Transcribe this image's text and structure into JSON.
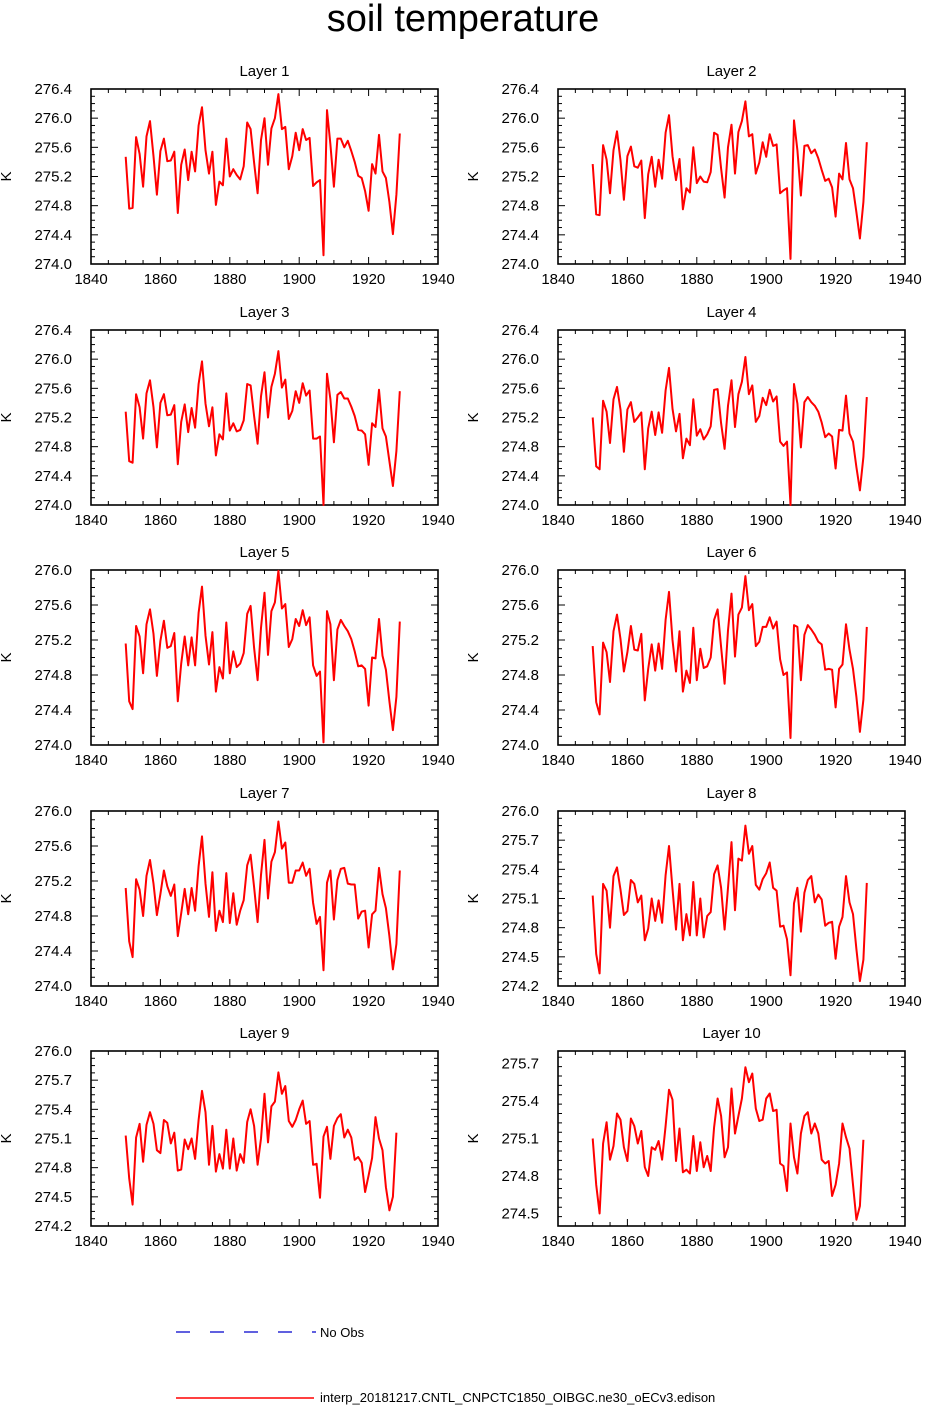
{
  "title": "soil temperature",
  "ylabel": "K",
  "x_ticks": [
    1840,
    1860,
    1880,
    1900,
    1920,
    1940
  ],
  "line_color": "#ff0000",
  "obs_color": "#0000cc",
  "legend": {
    "obs_label": "No Obs",
    "model_label": "interp_20181217.CNTL_CNPCTC1850_OIBGC.ne30_oECv3.edison"
  },
  "chart_data": [
    {
      "type": "line",
      "title": "Layer 1",
      "ylim": [
        274.0,
        276.4
      ],
      "yticks": [
        274.0,
        274.4,
        274.8,
        275.2,
        275.6,
        276.0,
        276.4
      ],
      "x_start": 1850,
      "x_step": 1,
      "values": [
        275.47,
        274.76,
        274.77,
        275.74,
        275.51,
        275.06,
        275.75,
        275.96,
        275.48,
        274.95,
        275.55,
        275.72,
        275.41,
        275.42,
        275.54,
        274.7,
        275.36,
        275.57,
        275.15,
        275.54,
        275.27,
        275.9,
        276.15,
        275.56,
        275.24,
        275.54,
        274.81,
        275.13,
        275.08,
        275.72,
        275.2,
        275.3,
        275.22,
        275.16,
        275.34,
        275.94,
        275.85,
        275.39,
        274.97,
        275.7,
        276.0,
        275.36,
        275.86,
        276.0,
        276.33,
        275.85,
        275.88,
        275.3,
        275.48,
        275.8,
        275.56,
        275.85,
        275.7,
        275.73,
        275.07,
        275.12,
        275.15,
        274.12,
        276.11,
        275.64,
        275.06,
        275.72,
        275.72,
        275.6,
        275.69,
        275.55,
        275.4,
        275.21,
        275.18,
        275.0,
        274.73,
        275.37,
        275.24,
        275.77,
        275.27,
        275.18,
        274.85,
        274.41,
        274.95,
        275.79
      ]
    },
    {
      "type": "line",
      "title": "Layer 2",
      "ylim": [
        274.0,
        276.4
      ],
      "yticks": [
        274.0,
        274.4,
        274.8,
        275.2,
        275.6,
        276.0,
        276.4
      ],
      "x_start": 1850,
      "x_step": 1,
      "values": [
        275.37,
        274.68,
        274.67,
        275.63,
        275.43,
        274.97,
        275.56,
        275.82,
        275.42,
        274.88,
        275.48,
        275.61,
        275.34,
        275.32,
        275.42,
        274.63,
        275.23,
        275.47,
        275.06,
        275.43,
        275.17,
        275.8,
        276.04,
        275.48,
        275.15,
        275.44,
        274.75,
        275.04,
        274.98,
        275.6,
        275.11,
        275.2,
        275.13,
        275.12,
        275.26,
        275.8,
        275.77,
        275.31,
        274.91,
        275.6,
        275.91,
        275.24,
        275.81,
        275.96,
        276.23,
        275.75,
        275.78,
        275.24,
        275.39,
        275.67,
        275.47,
        275.78,
        275.62,
        275.64,
        274.97,
        275.01,
        275.04,
        274.07,
        275.97,
        275.56,
        274.94,
        275.62,
        275.63,
        275.52,
        275.57,
        275.45,
        275.29,
        275.14,
        275.17,
        275.05,
        274.65,
        275.24,
        275.16,
        275.66,
        275.16,
        275.04,
        274.71,
        274.35,
        274.85,
        275.67
      ]
    },
    {
      "type": "line",
      "title": "Layer 3",
      "ylim": [
        274.0,
        276.4
      ],
      "yticks": [
        274.0,
        274.4,
        274.8,
        275.2,
        275.6,
        276.0,
        276.4
      ],
      "x_start": 1850,
      "x_step": 1,
      "values": [
        275.28,
        274.6,
        274.58,
        275.52,
        275.34,
        274.91,
        275.53,
        275.71,
        275.34,
        274.79,
        275.4,
        275.52,
        275.23,
        275.24,
        275.37,
        274.56,
        275.14,
        275.38,
        275.0,
        275.33,
        275.06,
        275.66,
        275.97,
        275.39,
        275.08,
        275.34,
        274.68,
        274.97,
        274.9,
        275.53,
        275.02,
        275.12,
        275.01,
        275.03,
        275.16,
        275.66,
        275.64,
        275.22,
        274.84,
        275.49,
        275.82,
        275.2,
        275.62,
        275.8,
        276.11,
        275.61,
        275.72,
        275.18,
        275.29,
        275.56,
        275.4,
        275.67,
        275.5,
        275.57,
        274.91,
        274.91,
        274.94,
        274.0,
        275.8,
        275.45,
        274.86,
        275.51,
        275.55,
        275.46,
        275.46,
        275.35,
        275.22,
        275.03,
        275.02,
        274.97,
        274.55,
        275.12,
        275.07,
        275.58,
        275.05,
        274.94,
        274.6,
        274.26,
        274.74,
        275.56
      ]
    },
    {
      "type": "line",
      "title": "Layer 4",
      "ylim": [
        274.0,
        276.4
      ],
      "yticks": [
        274.0,
        274.4,
        274.8,
        275.2,
        275.6,
        276.0,
        276.4
      ],
      "x_start": 1850,
      "x_step": 1,
      "values": [
        275.2,
        274.53,
        274.49,
        275.43,
        275.28,
        274.85,
        275.45,
        275.62,
        275.31,
        274.73,
        275.31,
        275.41,
        275.14,
        275.2,
        275.27,
        274.49,
        275.05,
        275.28,
        274.96,
        275.27,
        274.99,
        275.57,
        275.88,
        275.32,
        275.01,
        275.25,
        274.64,
        274.91,
        274.82,
        275.45,
        274.95,
        275.04,
        274.9,
        274.97,
        275.08,
        275.58,
        275.59,
        275.12,
        274.77,
        275.36,
        275.71,
        275.07,
        275.52,
        275.69,
        276.03,
        275.52,
        275.64,
        275.14,
        275.22,
        275.47,
        275.37,
        275.58,
        275.42,
        275.49,
        274.87,
        274.81,
        274.87,
        274.0,
        275.66,
        275.39,
        274.79,
        275.41,
        275.48,
        275.41,
        275.36,
        275.28,
        275.13,
        274.93,
        274.98,
        274.94,
        274.5,
        275.03,
        275.02,
        275.5,
        274.98,
        274.87,
        274.52,
        274.2,
        274.66,
        275.48
      ]
    },
    {
      "type": "line",
      "title": "Layer 5",
      "ylim": [
        274.0,
        276.0
      ],
      "yticks": [
        274.0,
        274.4,
        274.8,
        275.2,
        275.6,
        276.0
      ],
      "x_start": 1850,
      "x_step": 1,
      "values": [
        275.16,
        274.5,
        274.41,
        275.36,
        275.24,
        274.82,
        275.38,
        275.55,
        275.27,
        274.79,
        275.19,
        275.42,
        275.11,
        275.13,
        275.28,
        274.5,
        274.93,
        275.24,
        274.91,
        275.23,
        274.91,
        275.51,
        275.81,
        275.25,
        274.92,
        275.29,
        274.61,
        274.89,
        274.76,
        275.4,
        274.82,
        275.07,
        274.89,
        274.93,
        275.05,
        275.5,
        275.59,
        275.11,
        274.74,
        275.34,
        275.74,
        275.03,
        275.53,
        275.63,
        275.99,
        275.56,
        275.61,
        275.12,
        275.21,
        275.44,
        275.36,
        275.54,
        275.37,
        275.46,
        274.91,
        274.79,
        274.84,
        274.03,
        275.53,
        275.38,
        274.74,
        275.32,
        275.43,
        275.36,
        275.3,
        275.21,
        275.07,
        274.9,
        274.91,
        274.87,
        274.45,
        275.0,
        274.99,
        275.44,
        275.02,
        274.86,
        274.5,
        274.17,
        274.55,
        275.41
      ]
    },
    {
      "type": "line",
      "title": "Layer 6",
      "ylim": [
        274.0,
        276.0
      ],
      "yticks": [
        274.0,
        274.4,
        274.8,
        275.2,
        275.6,
        276.0
      ],
      "x_start": 1850,
      "x_step": 1,
      "values": [
        275.13,
        274.49,
        274.35,
        275.17,
        275.06,
        274.72,
        275.3,
        275.49,
        275.21,
        274.84,
        275.06,
        275.36,
        275.09,
        275.08,
        275.27,
        274.51,
        274.87,
        275.15,
        274.85,
        275.16,
        274.87,
        275.43,
        275.75,
        275.2,
        274.84,
        275.3,
        274.61,
        274.85,
        274.71,
        275.34,
        274.74,
        275.1,
        274.88,
        274.9,
        275.0,
        275.43,
        275.55,
        275.12,
        274.7,
        275.31,
        275.73,
        275.01,
        275.49,
        275.57,
        275.93,
        275.54,
        275.61,
        275.13,
        275.18,
        275.35,
        275.35,
        275.46,
        275.33,
        275.41,
        274.98,
        274.8,
        274.83,
        274.08,
        275.37,
        275.35,
        274.74,
        275.26,
        275.37,
        275.32,
        275.26,
        275.18,
        275.15,
        274.86,
        274.87,
        274.86,
        274.43,
        274.87,
        274.92,
        275.38,
        275.09,
        274.87,
        274.55,
        274.15,
        274.52,
        275.35
      ]
    },
    {
      "type": "line",
      "title": "Layer 7",
      "ylim": [
        274.0,
        276.0
      ],
      "yticks": [
        274.0,
        274.4,
        274.8,
        275.2,
        275.6,
        276.0
      ],
      "x_start": 1850,
      "x_step": 1,
      "values": [
        275.12,
        274.51,
        274.33,
        275.22,
        275.1,
        274.8,
        275.26,
        275.44,
        275.17,
        274.81,
        275.05,
        275.32,
        275.14,
        275.03,
        275.16,
        274.57,
        274.83,
        275.11,
        274.82,
        275.12,
        274.86,
        275.37,
        275.71,
        275.17,
        274.79,
        275.3,
        274.63,
        274.86,
        274.73,
        275.29,
        274.72,
        275.06,
        274.7,
        274.86,
        274.98,
        275.38,
        275.5,
        275.13,
        274.73,
        275.27,
        275.67,
        275.0,
        275.42,
        275.53,
        275.88,
        275.57,
        275.64,
        275.18,
        275.18,
        275.32,
        275.32,
        275.41,
        275.26,
        275.34,
        274.95,
        274.71,
        274.79,
        274.18,
        275.18,
        275.32,
        274.76,
        275.21,
        275.34,
        275.35,
        275.17,
        275.16,
        275.16,
        274.77,
        274.85,
        274.86,
        274.44,
        274.82,
        274.86,
        275.35,
        275.05,
        274.89,
        274.57,
        274.19,
        274.48,
        275.32
      ]
    },
    {
      "type": "line",
      "title": "Layer 8",
      "ylim": [
        274.2,
        276.0
      ],
      "yticks": [
        274.2,
        274.5,
        274.8,
        275.1,
        275.4,
        275.7,
        276.0
      ],
      "x_start": 1850,
      "x_step": 1,
      "values": [
        275.13,
        274.53,
        274.33,
        275.25,
        275.18,
        274.8,
        275.33,
        275.42,
        275.19,
        274.93,
        274.97,
        275.29,
        275.25,
        275.06,
        275.13,
        274.67,
        274.79,
        275.1,
        274.87,
        275.08,
        274.85,
        275.34,
        275.64,
        275.2,
        274.78,
        275.25,
        274.67,
        274.94,
        274.72,
        275.27,
        274.72,
        275.1,
        274.7,
        274.92,
        274.96,
        275.35,
        275.44,
        275.21,
        274.78,
        275.21,
        275.68,
        274.98,
        275.51,
        275.49,
        275.85,
        275.56,
        275.64,
        275.24,
        275.19,
        275.3,
        275.36,
        275.47,
        275.21,
        275.18,
        274.81,
        274.82,
        274.68,
        274.31,
        275.05,
        275.21,
        274.76,
        275.16,
        275.29,
        275.33,
        275.06,
        275.14,
        275.09,
        274.82,
        274.85,
        274.86,
        274.48,
        274.81,
        274.91,
        275.33,
        275.06,
        274.94,
        274.58,
        274.25,
        274.47,
        275.26
      ]
    },
    {
      "type": "line",
      "title": "Layer 9",
      "ylim": [
        274.2,
        276.0
      ],
      "yticks": [
        274.2,
        274.5,
        274.8,
        275.1,
        275.4,
        275.7,
        276.0
      ],
      "x_start": 1850,
      "x_step": 1,
      "values": [
        275.13,
        274.69,
        274.42,
        275.11,
        275.25,
        274.86,
        275.24,
        275.37,
        275.25,
        274.98,
        274.95,
        275.29,
        275.26,
        275.05,
        275.16,
        274.77,
        274.78,
        275.09,
        274.99,
        275.1,
        274.89,
        275.29,
        275.59,
        275.37,
        274.83,
        275.23,
        274.76,
        274.94,
        274.79,
        275.19,
        274.79,
        275.1,
        274.77,
        274.94,
        274.85,
        275.27,
        275.4,
        275.23,
        274.83,
        275.1,
        275.56,
        275.06,
        275.43,
        275.48,
        275.78,
        275.56,
        275.64,
        275.28,
        275.22,
        275.29,
        275.4,
        275.49,
        275.25,
        275.28,
        274.83,
        274.84,
        274.49,
        275.12,
        275.22,
        274.89,
        275.23,
        275.31,
        275.35,
        275.11,
        275.19,
        275.11,
        274.88,
        274.91,
        274.85,
        274.55,
        274.72,
        274.9,
        275.32,
        275.1,
        274.98,
        274.6,
        274.36,
        274.5,
        275.16
      ]
    },
    {
      "type": "line",
      "title": "Layer 10",
      "ylim": [
        274.4,
        275.8
      ],
      "yticks": [
        274.5,
        274.8,
        275.1,
        275.4,
        275.7
      ],
      "x_start": 1850,
      "x_step": 1,
      "values": [
        275.1,
        274.73,
        274.5,
        275.06,
        275.23,
        274.93,
        275.04,
        275.3,
        275.25,
        275.03,
        274.92,
        275.26,
        275.2,
        275.06,
        275.16,
        274.87,
        274.8,
        275.03,
        275.01,
        275.08,
        274.93,
        275.2,
        275.49,
        275.41,
        274.92,
        275.18,
        274.83,
        274.85,
        274.82,
        275.12,
        274.84,
        275.07,
        274.87,
        274.96,
        274.84,
        275.19,
        275.42,
        275.28,
        274.95,
        275.03,
        275.5,
        275.14,
        275.28,
        275.42,
        275.67,
        275.55,
        275.62,
        275.34,
        275.24,
        275.25,
        275.42,
        275.46,
        275.32,
        275.33,
        274.9,
        274.88,
        274.68,
        275.22,
        274.95,
        274.82,
        275.14,
        275.28,
        275.31,
        275.14,
        275.22,
        275.14,
        274.93,
        274.9,
        274.92,
        274.64,
        274.73,
        274.9,
        275.22,
        275.11,
        275.02,
        274.73,
        274.45,
        274.56,
        275.09
      ]
    }
  ]
}
